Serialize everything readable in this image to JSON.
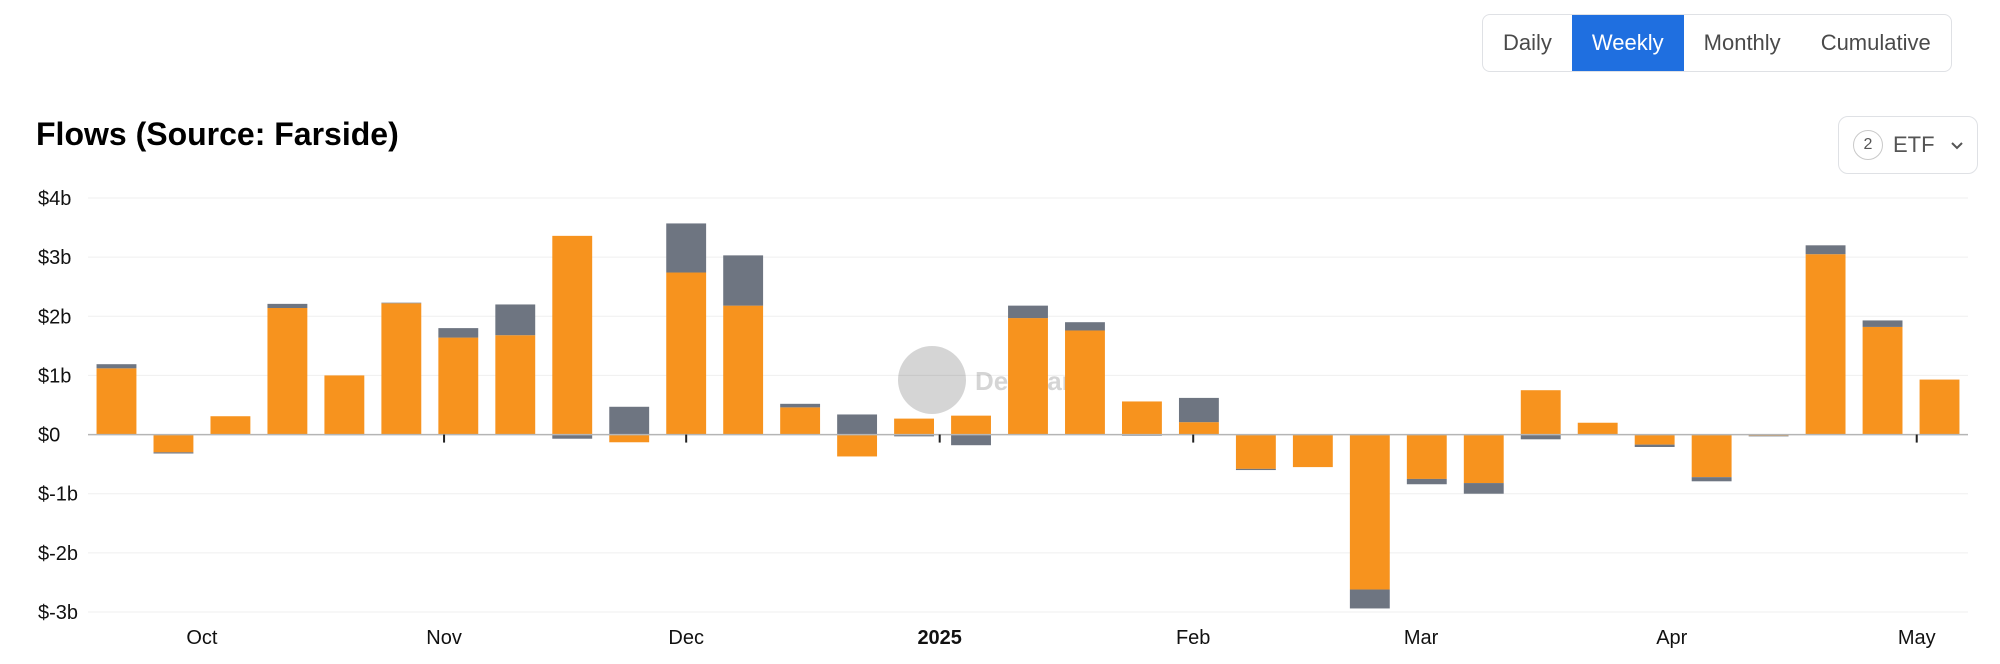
{
  "tabs": [
    {
      "label": "Daily",
      "active": false
    },
    {
      "label": "Weekly",
      "active": true
    },
    {
      "label": "Monthly",
      "active": false
    },
    {
      "label": "Cumulative",
      "active": false
    }
  ],
  "etf_selector": {
    "count": "2",
    "label": "ETF"
  },
  "watermark": "DefiLlama",
  "colors": {
    "series_primary": "#f7931e",
    "series_secondary": "#6e7581",
    "active_tab": "#1f6fe0",
    "grid": "#efefef"
  },
  "chart_data": {
    "type": "bar",
    "stacked": true,
    "title": "Flows (Source: Farside)",
    "ylim": [
      -3,
      4
    ],
    "y_ticks": [
      {
        "value": 4,
        "label": "$4b"
      },
      {
        "value": 3,
        "label": "$3b"
      },
      {
        "value": 2,
        "label": "$2b"
      },
      {
        "value": 1,
        "label": "$1b"
      },
      {
        "value": 0,
        "label": "$0"
      },
      {
        "value": -1,
        "label": "$-1b"
      },
      {
        "value": -2,
        "label": "$-2b"
      },
      {
        "value": -3,
        "label": "$-3b"
      }
    ],
    "x_labels": [
      {
        "label": "Oct",
        "at": 1.5,
        "bold": false
      },
      {
        "label": "Nov",
        "at": 5.75,
        "bold": false
      },
      {
        "label": "Dec",
        "at": 10.0,
        "bold": false
      },
      {
        "label": "2025",
        "at": 14.45,
        "bold": true
      },
      {
        "label": "Feb",
        "at": 18.9,
        "bold": false
      },
      {
        "label": "Mar",
        "at": 22.9,
        "bold": false
      },
      {
        "label": "Apr",
        "at": 27.3,
        "bold": false
      },
      {
        "label": "May",
        "at": 31.6,
        "bold": false
      }
    ],
    "x_tick_marks": [
      5.75,
      10.0,
      14.45,
      18.9,
      31.6
    ],
    "bar_count": 33,
    "grid": true,
    "series": [
      {
        "values": [
          1.12,
          -0.3,
          0.31,
          2.14,
          1.0,
          2.22,
          1.64,
          1.68,
          3.36,
          -0.13,
          2.74,
          2.18,
          0.46,
          -0.37,
          0.27,
          0.32,
          1.97,
          1.76,
          0.56,
          0.21,
          -0.58,
          -0.55,
          -2.62,
          -0.75,
          -0.82,
          0.75,
          0.2,
          -0.17,
          -0.72,
          -0.02,
          3.05,
          1.82,
          0.93
        ]
      },
      {
        "values": [
          0.07,
          -0.02,
          0.0,
          0.07,
          -0.01,
          0.01,
          0.16,
          0.52,
          -0.07,
          0.47,
          0.83,
          0.85,
          0.06,
          0.34,
          -0.03,
          -0.18,
          0.21,
          0.14,
          -0.02,
          0.41,
          -0.02,
          0.0,
          -0.32,
          -0.09,
          -0.18,
          -0.08,
          0.0,
          -0.04,
          -0.07,
          -0.01,
          0.15,
          0.11,
          -0.01
        ]
      }
    ]
  }
}
